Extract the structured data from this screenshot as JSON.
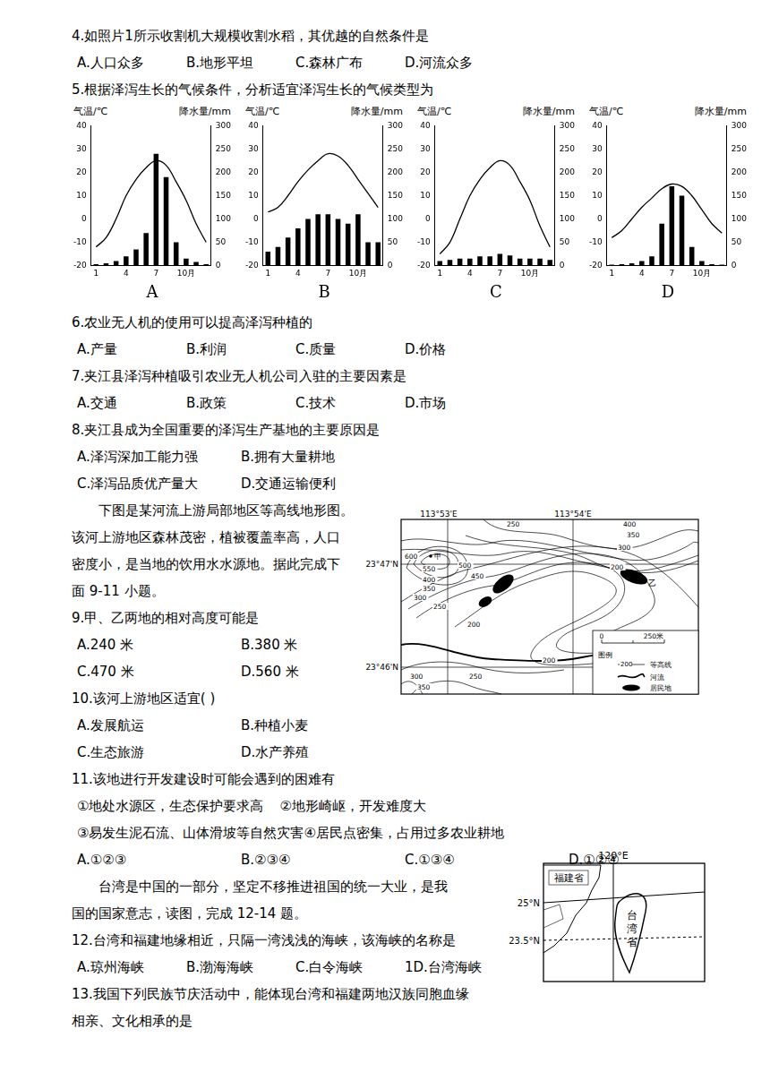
{
  "items": [
    {
      "stem": [
        "4.如照片1所示收割机大规模收割水稻，其优越的自然条件是"
      ],
      "options": [
        [
          "A.人口众多",
          "B.地形平坦",
          "C.森林广布",
          "D.河流众多"
        ]
      ]
    },
    {
      "stem": [
        "5.根据泽泻生长的气候条件，分析适宜泽泻生长的气候类型为"
      ]
    },
    {
      "stem": [
        "6.农业无人机的使用可以提高泽泻种植的"
      ],
      "options": [
        [
          "A.产量",
          "B.利润",
          "C.质量",
          "D.价格"
        ]
      ]
    },
    {
      "stem": [
        "7.夹江县泽泻种植吸引农业无人机公司入驻的主要因素是"
      ],
      "options": [
        [
          "A.交通",
          "B.政策",
          "C.技术",
          "D.市场"
        ]
      ]
    },
    {
      "stem": [
        "8.夹江县成为全国重要的泽泻生产基地的主要原因是"
      ],
      "options": [
        [
          "A.泽泻深加工能力强",
          "B.拥有大量耕地"
        ],
        [
          "C.泽泻品质优产量大",
          "D.交通运输便利"
        ]
      ]
    },
    {
      "passage": [
        "下图是某河流上游局部地区等高线地形图。",
        "该河上游地区森林茂密，植被覆盖率高，人口",
        "密度小，是当地的饮用水水源地。据此完成下",
        "面 9-11 小题。"
      ]
    },
    {
      "stem": [
        "9.甲、乙两地的相对高度可能是"
      ],
      "options": [
        [
          "A.240 米",
          "B.380 米"
        ],
        [
          "C.470 米",
          "D.560 米"
        ]
      ]
    },
    {
      "stem": [
        "10.该河上游地区适宜( )"
      ],
      "options": [
        [
          "A.发展航运",
          "B.种植小麦"
        ],
        [
          "C.生态旅游",
          "D.水产养殖"
        ]
      ]
    },
    {
      "stem": [
        "11.该地进行开发建设时可能会遇到的困难有"
      ],
      "options": [
        [
          "①地处水源区，生态保护要求高",
          "②地形崎岖，开发难度大"
        ],
        [
          "③易发生泥石流、山体滑坡等自然灾害④居民点密集，占用过多农业耕地"
        ],
        [
          "A.①②③",
          "B.②③④",
          "C.①③④",
          "D.①②④"
        ]
      ]
    },
    {
      "passage": [
        "台湾是中国的一部分，坚定不移推进祖国的统一大业，是我",
        "国的国家意志，读图，完成 12-14 题。"
      ]
    },
    {
      "stem": [
        "12.台湾和福建地缘相近，只隔一湾浅浅的海峡，该海峡的名称是"
      ],
      "options": [
        [
          "A.琼州海峡",
          "B.渤海海峡",
          "C.白令海峡",
          "1D.台湾海峡"
        ]
      ]
    },
    {
      "stem": [
        "13.我国下列民族节庆活动中，能体现台湾和福建两地汉族同胞血缘",
        "相亲、文化相承的是"
      ]
    }
  ],
  "chart_data": [
    {
      "type": "bar",
      "title": "A",
      "ylabel": "气温/℃",
      "y2label": "降水量/mm",
      "categories": [
        "1",
        null,
        null,
        "4",
        null,
        null,
        "7",
        null,
        null,
        "10月",
        null,
        null
      ],
      "series": [
        {
          "type": "line",
          "color": "#000000",
          "values": [
            -12,
            -8,
            0,
            10,
            17,
            22,
            25,
            23,
            16,
            8,
            -2,
            -10
          ]
        },
        {
          "type": "bar",
          "color": "#000000",
          "axis": "y2",
          "values": [
            3,
            5,
            10,
            20,
            35,
            70,
            240,
            190,
            50,
            15,
            8,
            3
          ]
        }
      ],
      "ylim": [
        -20,
        40
      ],
      "yticks": [
        -20,
        -10,
        0,
        10,
        20,
        30,
        40
      ],
      "y2lim": [
        0,
        300
      ],
      "y2ticks": [
        0,
        50,
        100,
        150,
        200,
        250,
        300
      ],
      "grid": false
    },
    {
      "type": "bar",
      "title": "B",
      "ylabel": "气温/℃",
      "y2label": "降水量/mm",
      "categories": [
        "1",
        null,
        null,
        "4",
        null,
        null,
        "7",
        null,
        null,
        "10月",
        null,
        null
      ],
      "series": [
        {
          "type": "line",
          "color": "#000000",
          "values": [
            3,
            5,
            10,
            16,
            21,
            25,
            28,
            27,
            23,
            17,
            11,
            5
          ]
        },
        {
          "type": "bar",
          "color": "#000000",
          "axis": "y2",
          "values": [
            30,
            40,
            60,
            80,
            100,
            110,
            110,
            100,
            90,
            110,
            50,
            50
          ]
        }
      ],
      "ylim": [
        -20,
        40
      ],
      "yticks": [
        -20,
        -10,
        0,
        10,
        20,
        30,
        40
      ],
      "y2lim": [
        0,
        300
      ],
      "y2ticks": [
        0,
        50,
        100,
        150,
        200,
        250,
        300
      ],
      "grid": false
    },
    {
      "type": "bar",
      "title": "C",
      "ylabel": "气温/℃",
      "y2label": "降水量/mm",
      "categories": [
        "1",
        null,
        null,
        "4",
        null,
        null,
        "7",
        null,
        null,
        "10月",
        null,
        null
      ],
      "series": [
        {
          "type": "line",
          "color": "#000000",
          "values": [
            -15,
            -10,
            0,
            10,
            17,
            22,
            25,
            23,
            16,
            8,
            -3,
            -12
          ]
        },
        {
          "type": "bar",
          "color": "#000000",
          "axis": "y2",
          "values": [
            10,
            12,
            15,
            15,
            20,
            20,
            25,
            22,
            15,
            15,
            15,
            12
          ]
        }
      ],
      "ylim": [
        -20,
        40
      ],
      "yticks": [
        -20,
        -10,
        0,
        10,
        20,
        30,
        40
      ],
      "y2lim": [
        0,
        300
      ],
      "y2ticks": [
        0,
        50,
        100,
        150,
        200,
        250,
        300
      ],
      "grid": false
    },
    {
      "type": "bar",
      "title": "D",
      "ylabel": "气温/℃",
      "y2label": "降水量/mm",
      "categories": [
        "1",
        null,
        null,
        "4",
        null,
        null,
        "7",
        null,
        null,
        "10月",
        null,
        null
      ],
      "series": [
        {
          "type": "line",
          "color": "#000000",
          "values": [
            -8,
            -5,
            0,
            5,
            9,
            13,
            15,
            14,
            10,
            4,
            -2,
            -6
          ]
        },
        {
          "type": "bar",
          "color": "#000000",
          "axis": "y2",
          "values": [
            2,
            3,
            5,
            10,
            20,
            90,
            170,
            150,
            40,
            10,
            3,
            2
          ]
        }
      ],
      "ylim": [
        -20,
        40
      ],
      "yticks": [
        -20,
        -10,
        0,
        10,
        20,
        30,
        40
      ],
      "y2lim": [
        0,
        300
      ],
      "y2ticks": [
        0,
        50,
        100,
        150,
        200,
        250,
        300
      ],
      "grid": false
    }
  ],
  "contour_map": {
    "longitudes": [
      "113°53'E",
      "113°54'E"
    ],
    "latitudes": [
      "23°47'N",
      "23°46'N"
    ],
    "contour_labels": [
      "250",
      "400",
      "350",
      "300",
      "200",
      "600",
      "550",
      "500",
      "450",
      "400",
      "350",
      "300",
      "250",
      "200",
      "200",
      "300",
      "250",
      "350"
    ],
    "places": [
      "甲",
      "乙"
    ],
    "scale": [
      "0",
      "250米"
    ],
    "legend": {
      "title": "图例",
      "contour_value": "200",
      "items": [
        "等高线",
        "河流",
        "居民地"
      ]
    }
  },
  "taiwan_map": {
    "longitude": "120°E",
    "latitudes": [
      "25°N",
      "23.5°N"
    ],
    "provinces": [
      "福建省",
      "台湾省"
    ]
  }
}
